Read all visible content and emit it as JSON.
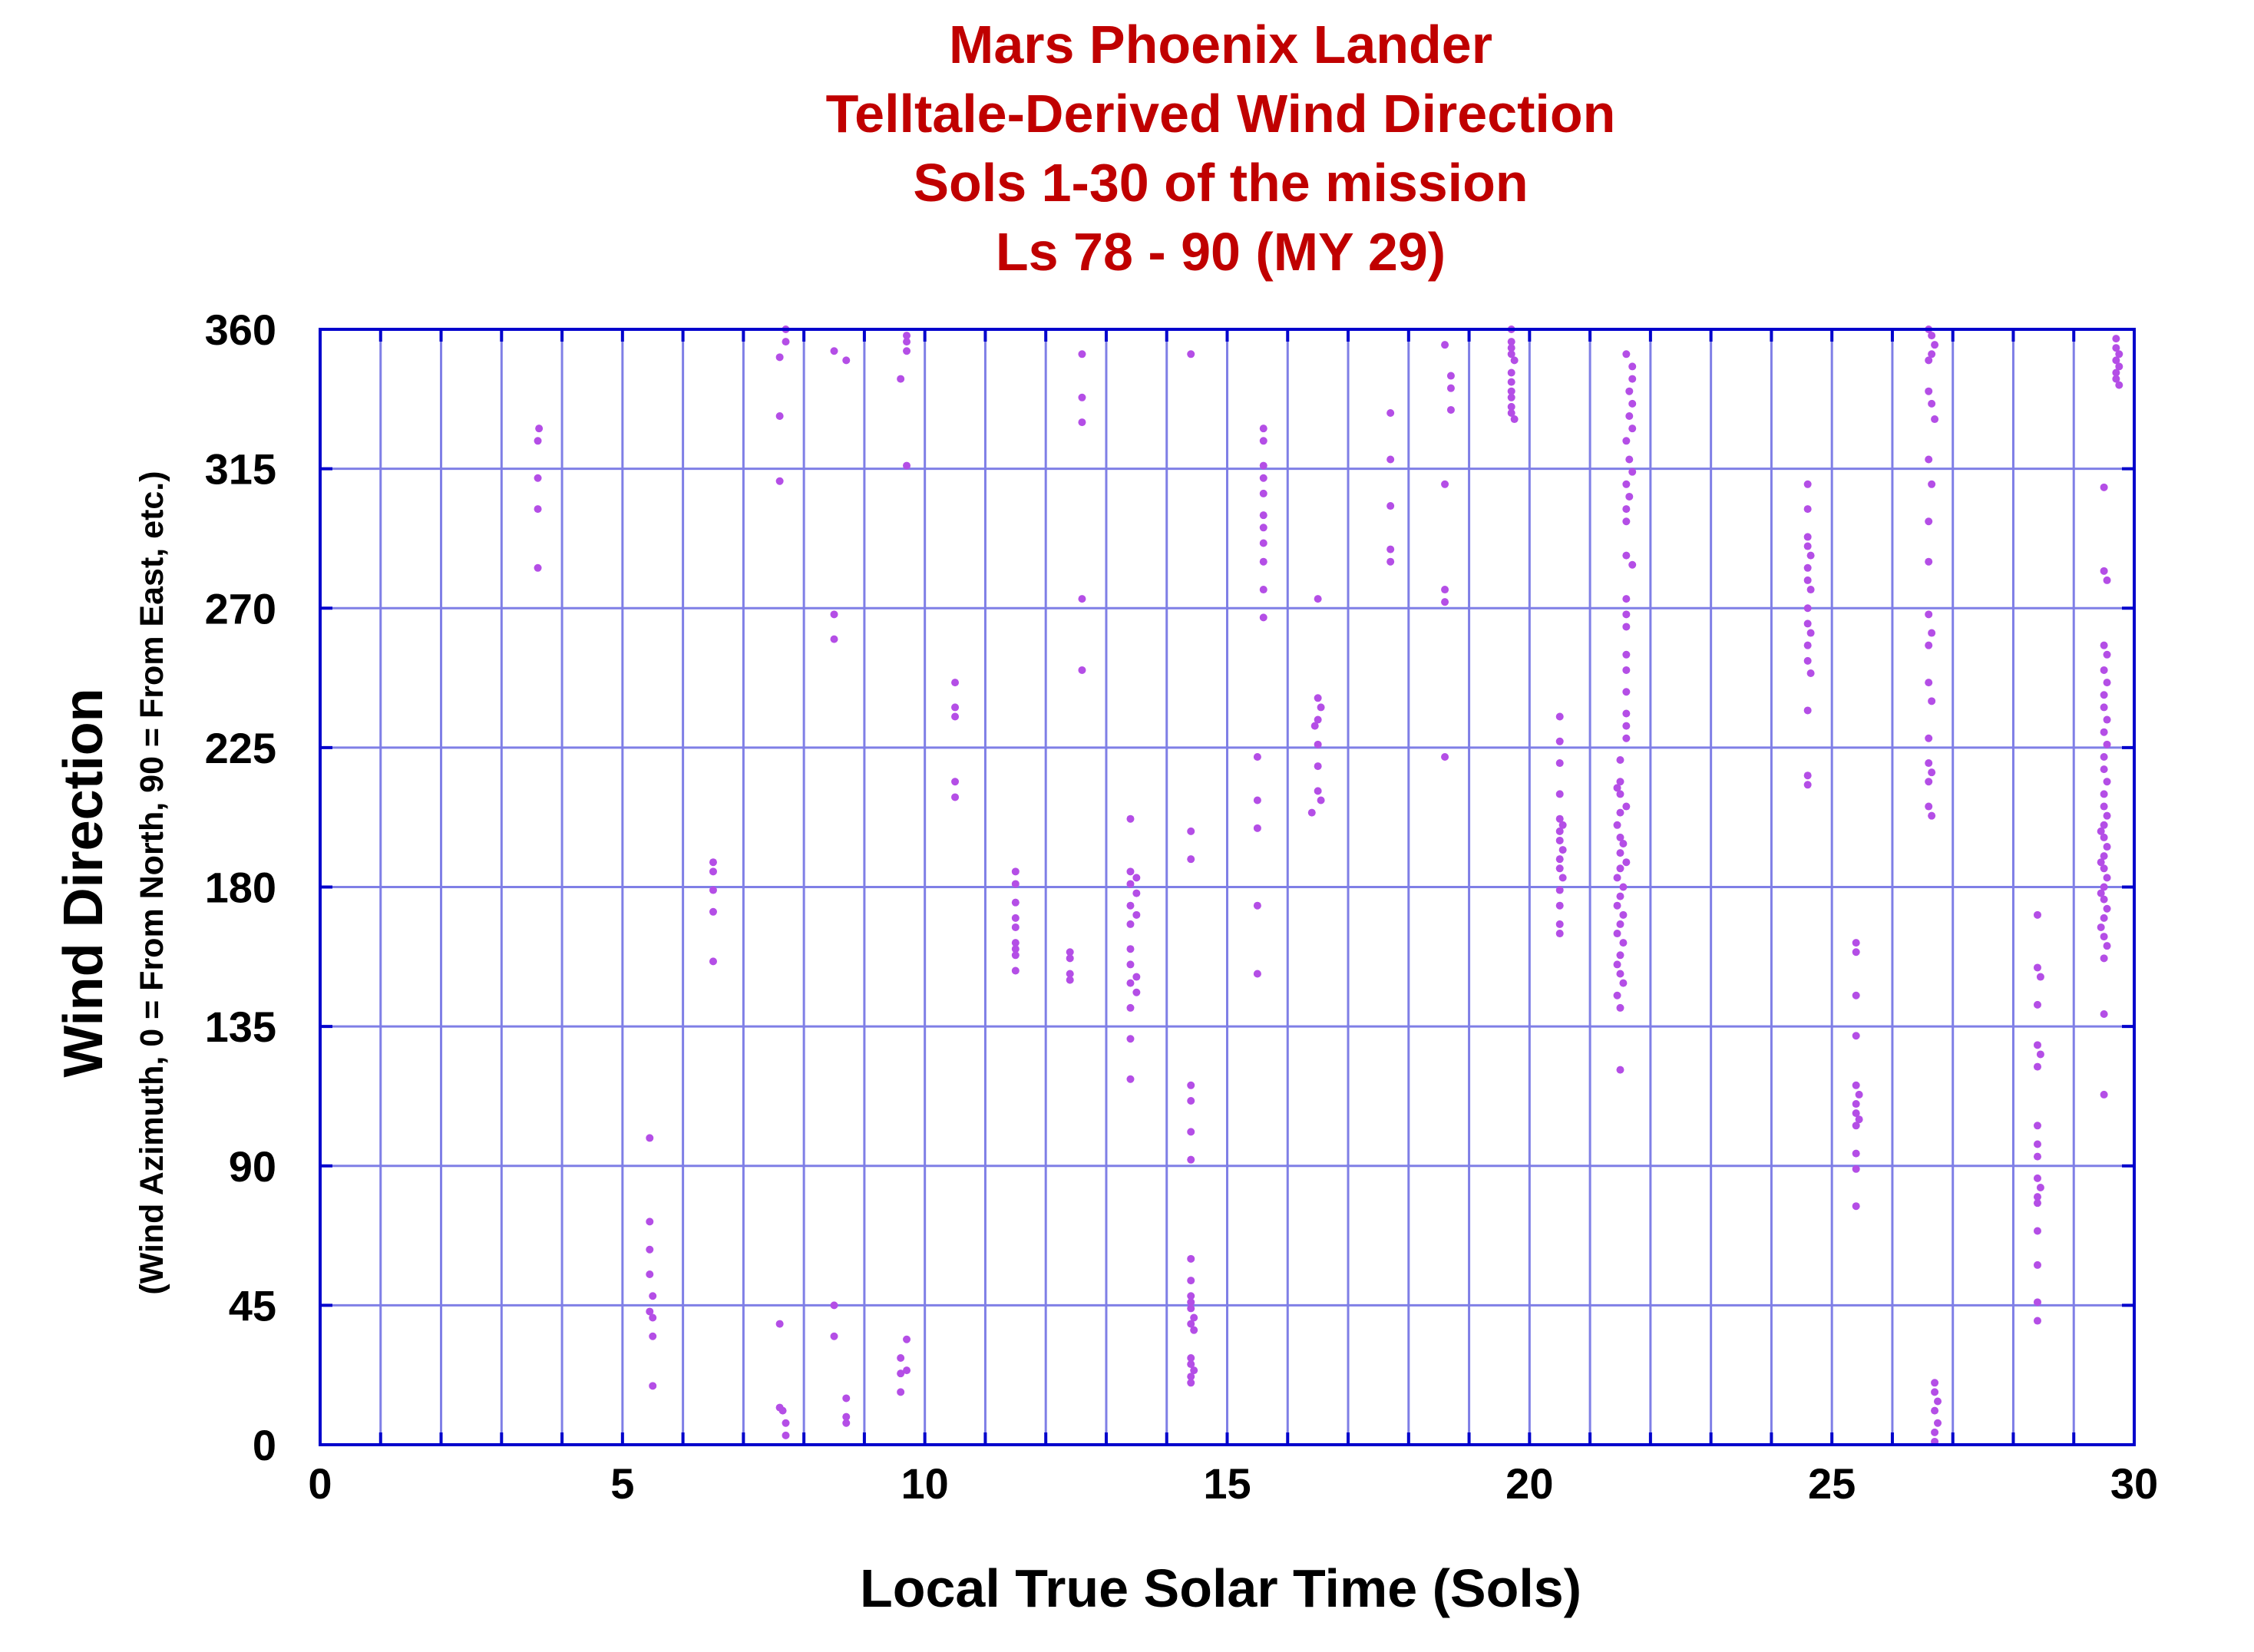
{
  "chart_data": {
    "type": "scatter",
    "title": [
      "Mars Phoenix Lander",
      "Telltale-Derived Wind Direction",
      "Sols 1-30 of the mission",
      "Ls 78 - 90 (MY 29)"
    ],
    "xlabel": "Local True Solar Time (Sols)",
    "ylabel": "Wind Direction",
    "ylabel_sub": "(Wind Azimuth, 0 = From North, 90 = From East, etc.)",
    "xlim": [
      0,
      30
    ],
    "ylim": [
      0,
      360
    ],
    "x_ticks": [
      0,
      5,
      10,
      15,
      20,
      25,
      30
    ],
    "y_ticks": [
      0,
      45,
      90,
      135,
      180,
      225,
      270,
      315,
      360
    ],
    "x_grid_step": 1,
    "y_grid_step": 45,
    "grid": true,
    "legend": "none",
    "colors": {
      "title": "#c00000",
      "grid": "#7f7fe6",
      "frame": "#0000cc",
      "points": "#b44ee6",
      "text": "#000000"
    },
    "points": [
      [
        3.6,
        324
      ],
      [
        3.62,
        328
      ],
      [
        3.6,
        312
      ],
      [
        3.6,
        302
      ],
      [
        3.6,
        283
      ],
      [
        5.45,
        99
      ],
      [
        5.45,
        72
      ],
      [
        5.45,
        63
      ],
      [
        5.45,
        55
      ],
      [
        5.5,
        48
      ],
      [
        5.45,
        43
      ],
      [
        5.5,
        41
      ],
      [
        5.5,
        35
      ],
      [
        5.5,
        19
      ],
      [
        6.5,
        188
      ],
      [
        6.5,
        185
      ],
      [
        6.5,
        179
      ],
      [
        6.5,
        172
      ],
      [
        6.5,
        156
      ],
      [
        7.7,
        360
      ],
      [
        7.7,
        356
      ],
      [
        7.6,
        351
      ],
      [
        7.6,
        332
      ],
      [
        7.6,
        311
      ],
      [
        7.6,
        39
      ],
      [
        7.6,
        12
      ],
      [
        7.65,
        11
      ],
      [
        7.7,
        7
      ],
      [
        7.7,
        3
      ],
      [
        8.5,
        353
      ],
      [
        8.7,
        350
      ],
      [
        8.5,
        268
      ],
      [
        8.5,
        260
      ],
      [
        8.5,
        45
      ],
      [
        8.5,
        35
      ],
      [
        8.7,
        15
      ],
      [
        8.7,
        9
      ],
      [
        8.7,
        7
      ],
      [
        9.7,
        358
      ],
      [
        9.7,
        356
      ],
      [
        9.7,
        353
      ],
      [
        9.6,
        344
      ],
      [
        9.7,
        316
      ],
      [
        9.7,
        34
      ],
      [
        9.6,
        28
      ],
      [
        9.7,
        24
      ],
      [
        9.6,
        23
      ],
      [
        9.6,
        17
      ],
      [
        10.5,
        246
      ],
      [
        10.5,
        238
      ],
      [
        10.5,
        235
      ],
      [
        10.5,
        214
      ],
      [
        10.5,
        209
      ],
      [
        11.5,
        185
      ],
      [
        11.5,
        181
      ],
      [
        11.5,
        175
      ],
      [
        11.5,
        170
      ],
      [
        11.5,
        167
      ],
      [
        11.5,
        162
      ],
      [
        11.5,
        160
      ],
      [
        11.5,
        158
      ],
      [
        11.5,
        153
      ],
      [
        12.4,
        159
      ],
      [
        12.4,
        157
      ],
      [
        12.4,
        152
      ],
      [
        12.4,
        150
      ],
      [
        12.6,
        352
      ],
      [
        12.6,
        338
      ],
      [
        12.6,
        330
      ],
      [
        12.6,
        273
      ],
      [
        12.6,
        250
      ],
      [
        13.4,
        202
      ],
      [
        13.4,
        185
      ],
      [
        13.5,
        183
      ],
      [
        13.4,
        181
      ],
      [
        13.5,
        178
      ],
      [
        13.4,
        174
      ],
      [
        13.5,
        171
      ],
      [
        13.4,
        168
      ],
      [
        13.4,
        160
      ],
      [
        13.4,
        155
      ],
      [
        13.5,
        151
      ],
      [
        13.4,
        149
      ],
      [
        13.5,
        146
      ],
      [
        13.4,
        141
      ],
      [
        13.4,
        131
      ],
      [
        13.4,
        118
      ],
      [
        14.4,
        352
      ],
      [
        14.4,
        198
      ],
      [
        14.4,
        189
      ],
      [
        14.4,
        116
      ],
      [
        14.4,
        111
      ],
      [
        14.4,
        101
      ],
      [
        14.4,
        92
      ],
      [
        14.4,
        60
      ],
      [
        14.4,
        53
      ],
      [
        14.4,
        48
      ],
      [
        14.4,
        46
      ],
      [
        14.4,
        44
      ],
      [
        14.45,
        41
      ],
      [
        14.4,
        39
      ],
      [
        14.45,
        37
      ],
      [
        14.4,
        28
      ],
      [
        14.4,
        26
      ],
      [
        14.45,
        24
      ],
      [
        14.4,
        22
      ],
      [
        14.4,
        20
      ],
      [
        15.6,
        328
      ],
      [
        15.6,
        324
      ],
      [
        15.6,
        316
      ],
      [
        15.6,
        312
      ],
      [
        15.6,
        307
      ],
      [
        15.6,
        300
      ],
      [
        15.6,
        296
      ],
      [
        15.6,
        291
      ],
      [
        15.6,
        285
      ],
      [
        15.6,
        276
      ],
      [
        15.6,
        267
      ],
      [
        15.5,
        222
      ],
      [
        15.5,
        208
      ],
      [
        15.5,
        199
      ],
      [
        15.5,
        174
      ],
      [
        15.5,
        152
      ],
      [
        16.5,
        273
      ],
      [
        16.5,
        241
      ],
      [
        16.55,
        238
      ],
      [
        16.5,
        234
      ],
      [
        16.45,
        232
      ],
      [
        16.5,
        226
      ],
      [
        16.5,
        219
      ],
      [
        16.5,
        211
      ],
      [
        16.55,
        208
      ],
      [
        16.4,
        204
      ],
      [
        17.7,
        333
      ],
      [
        17.7,
        318
      ],
      [
        17.7,
        303
      ],
      [
        17.7,
        289
      ],
      [
        17.7,
        285
      ],
      [
        18.6,
        355
      ],
      [
        18.7,
        345
      ],
      [
        18.7,
        341
      ],
      [
        18.7,
        334
      ],
      [
        18.6,
        310
      ],
      [
        18.6,
        276
      ],
      [
        18.6,
        272
      ],
      [
        18.6,
        222
      ],
      [
        19.7,
        360
      ],
      [
        19.7,
        356
      ],
      [
        19.7,
        354
      ],
      [
        19.7,
        352
      ],
      [
        19.75,
        350
      ],
      [
        19.7,
        346
      ],
      [
        19.7,
        343
      ],
      [
        19.7,
        340
      ],
      [
        19.7,
        338
      ],
      [
        19.7,
        335
      ],
      [
        19.7,
        333
      ],
      [
        19.75,
        331
      ],
      [
        20.5,
        235
      ],
      [
        20.5,
        227
      ],
      [
        20.5,
        220
      ],
      [
        20.5,
        210
      ],
      [
        20.5,
        202
      ],
      [
        20.55,
        200
      ],
      [
        20.5,
        198
      ],
      [
        20.5,
        195
      ],
      [
        20.55,
        192
      ],
      [
        20.5,
        189
      ],
      [
        20.5,
        186
      ],
      [
        20.55,
        183
      ],
      [
        20.5,
        179
      ],
      [
        20.5,
        174
      ],
      [
        20.5,
        168
      ],
      [
        20.5,
        165
      ],
      [
        21.5,
        214
      ],
      [
        21.45,
        212
      ],
      [
        21.5,
        210
      ],
      [
        21.6,
        206
      ],
      [
        21.5,
        204
      ],
      [
        21.45,
        200
      ],
      [
        21.5,
        196
      ],
      [
        21.55,
        194
      ],
      [
        21.5,
        191
      ],
      [
        21.6,
        188
      ],
      [
        21.5,
        186
      ],
      [
        21.45,
        183
      ],
      [
        21.55,
        180
      ],
      [
        21.5,
        177
      ],
      [
        21.45,
        174
      ],
      [
        21.55,
        171
      ],
      [
        21.5,
        168
      ],
      [
        21.45,
        165
      ],
      [
        21.55,
        162
      ],
      [
        21.5,
        158
      ],
      [
        21.45,
        155
      ],
      [
        21.5,
        152
      ],
      [
        21.55,
        149
      ],
      [
        21.45,
        145
      ],
      [
        21.5,
        141
      ],
      [
        21.5,
        121
      ],
      [
        21.6,
        352
      ],
      [
        21.7,
        348
      ],
      [
        21.7,
        344
      ],
      [
        21.65,
        340
      ],
      [
        21.7,
        336
      ],
      [
        21.65,
        332
      ],
      [
        21.7,
        328
      ],
      [
        21.6,
        324
      ],
      [
        21.65,
        318
      ],
      [
        21.7,
        314
      ],
      [
        21.6,
        310
      ],
      [
        21.65,
        306
      ],
      [
        21.6,
        302
      ],
      [
        21.6,
        298
      ],
      [
        21.6,
        287
      ],
      [
        21.7,
        284
      ],
      [
        21.6,
        273
      ],
      [
        21.6,
        268
      ],
      [
        21.6,
        264
      ],
      [
        21.6,
        255
      ],
      [
        21.6,
        250
      ],
      [
        21.6,
        243
      ],
      [
        21.6,
        236
      ],
      [
        21.6,
        232
      ],
      [
        21.6,
        228
      ],
      [
        21.5,
        221
      ],
      [
        24.6,
        310
      ],
      [
        24.6,
        302
      ],
      [
        24.6,
        293
      ],
      [
        24.6,
        290
      ],
      [
        24.65,
        287
      ],
      [
        24.6,
        283
      ],
      [
        24.6,
        279
      ],
      [
        24.65,
        276
      ],
      [
        24.6,
        270
      ],
      [
        24.6,
        265
      ],
      [
        24.65,
        262
      ],
      [
        24.6,
        258
      ],
      [
        24.6,
        253
      ],
      [
        24.65,
        249
      ],
      [
        24.6,
        237
      ],
      [
        24.6,
        216
      ],
      [
        24.6,
        213
      ],
      [
        25.4,
        162
      ],
      [
        25.4,
        159
      ],
      [
        25.4,
        145
      ],
      [
        25.4,
        132
      ],
      [
        25.4,
        116
      ],
      [
        25.45,
        113
      ],
      [
        25.4,
        110
      ],
      [
        25.4,
        107
      ],
      [
        25.45,
        105
      ],
      [
        25.4,
        103
      ],
      [
        25.4,
        94
      ],
      [
        25.4,
        89
      ],
      [
        25.4,
        77
      ],
      [
        26.6,
        360
      ],
      [
        26.65,
        358
      ],
      [
        26.7,
        355
      ],
      [
        26.6,
        350
      ],
      [
        26.65,
        352
      ],
      [
        26.6,
        340
      ],
      [
        26.65,
        336
      ],
      [
        26.7,
        331
      ],
      [
        26.6,
        318
      ],
      [
        26.65,
        310
      ],
      [
        26.6,
        298
      ],
      [
        26.6,
        285
      ],
      [
        26.6,
        268
      ],
      [
        26.65,
        262
      ],
      [
        26.6,
        258
      ],
      [
        26.6,
        246
      ],
      [
        26.65,
        240
      ],
      [
        26.6,
        228
      ],
      [
        26.6,
        220
      ],
      [
        26.65,
        217
      ],
      [
        26.6,
        214
      ],
      [
        26.6,
        206
      ],
      [
        26.65,
        203
      ],
      [
        26.7,
        20
      ],
      [
        26.7,
        17
      ],
      [
        26.75,
        14
      ],
      [
        26.7,
        11
      ],
      [
        26.75,
        7
      ],
      [
        26.7,
        4
      ],
      [
        26.7,
        1
      ],
      [
        28.4,
        171
      ],
      [
        28.4,
        154
      ],
      [
        28.45,
        151
      ],
      [
        28.4,
        142
      ],
      [
        28.4,
        129
      ],
      [
        28.45,
        126
      ],
      [
        28.4,
        122
      ],
      [
        28.4,
        103
      ],
      [
        28.4,
        97
      ],
      [
        28.4,
        93
      ],
      [
        28.4,
        86
      ],
      [
        28.45,
        83
      ],
      [
        28.4,
        80
      ],
      [
        28.4,
        78
      ],
      [
        28.4,
        69
      ],
      [
        28.4,
        58
      ],
      [
        28.4,
        46
      ],
      [
        28.4,
        40
      ],
      [
        29.5,
        309
      ],
      [
        29.5,
        282
      ],
      [
        29.55,
        279
      ],
      [
        29.5,
        258
      ],
      [
        29.55,
        255
      ],
      [
        29.5,
        250
      ],
      [
        29.55,
        246
      ],
      [
        29.5,
        242
      ],
      [
        29.5,
        238
      ],
      [
        29.55,
        234
      ],
      [
        29.5,
        230
      ],
      [
        29.55,
        226
      ],
      [
        29.5,
        222
      ],
      [
        29.5,
        218
      ],
      [
        29.55,
        214
      ],
      [
        29.5,
        210
      ],
      [
        29.5,
        206
      ],
      [
        29.55,
        203
      ],
      [
        29.5,
        200
      ],
      [
        29.45,
        198
      ],
      [
        29.5,
        196
      ],
      [
        29.55,
        193
      ],
      [
        29.5,
        190
      ],
      [
        29.45,
        188
      ],
      [
        29.5,
        186
      ],
      [
        29.55,
        183
      ],
      [
        29.5,
        180
      ],
      [
        29.45,
        178
      ],
      [
        29.5,
        176
      ],
      [
        29.55,
        173
      ],
      [
        29.5,
        170
      ],
      [
        29.45,
        167
      ],
      [
        29.5,
        164
      ],
      [
        29.55,
        161
      ],
      [
        29.5,
        157
      ],
      [
        29.5,
        139
      ],
      [
        29.5,
        113
      ],
      [
        29.7,
        357
      ],
      [
        29.7,
        354
      ],
      [
        29.75,
        352
      ],
      [
        29.7,
        350
      ],
      [
        29.75,
        348
      ],
      [
        29.7,
        346
      ],
      [
        29.7,
        344
      ],
      [
        29.75,
        342
      ]
    ]
  }
}
